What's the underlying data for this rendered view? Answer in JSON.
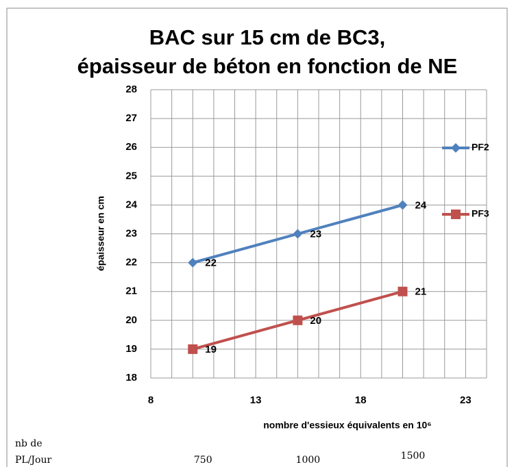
{
  "chart_data": {
    "type": "line",
    "title": [
      "BAC sur 15 cm de BC3,",
      "épaisseur de béton en fonction de NE"
    ],
    "x_label": "nombre d'essieux équivalents en 10⁶",
    "y_label": "épaisseur en cm",
    "x": [
      10,
      15,
      20
    ],
    "series": [
      {
        "name": "PF2",
        "color": "#4f81bd",
        "marker": "diamond",
        "values": [
          22,
          23,
          24
        ]
      },
      {
        "name": "PF3",
        "color": "#c0504d",
        "marker": "square",
        "values": [
          19,
          20,
          21
        ]
      }
    ],
    "xlim": [
      8,
      24
    ],
    "xticks": [
      8,
      13,
      18,
      23
    ],
    "xgrid": [
      8,
      9,
      10,
      11,
      12,
      13,
      14,
      15,
      16,
      17,
      18,
      19,
      20,
      21,
      22,
      23,
      24
    ],
    "ylim": [
      18,
      28
    ],
    "yticks": [
      18,
      19,
      20,
      21,
      22,
      23,
      24,
      25,
      26,
      27,
      28
    ],
    "grid": true,
    "legend": "right",
    "pl_jour": {
      "label": [
        "nb de",
        "PL/Jour"
      ],
      "values": [
        750,
        1000,
        1500
      ]
    }
  }
}
